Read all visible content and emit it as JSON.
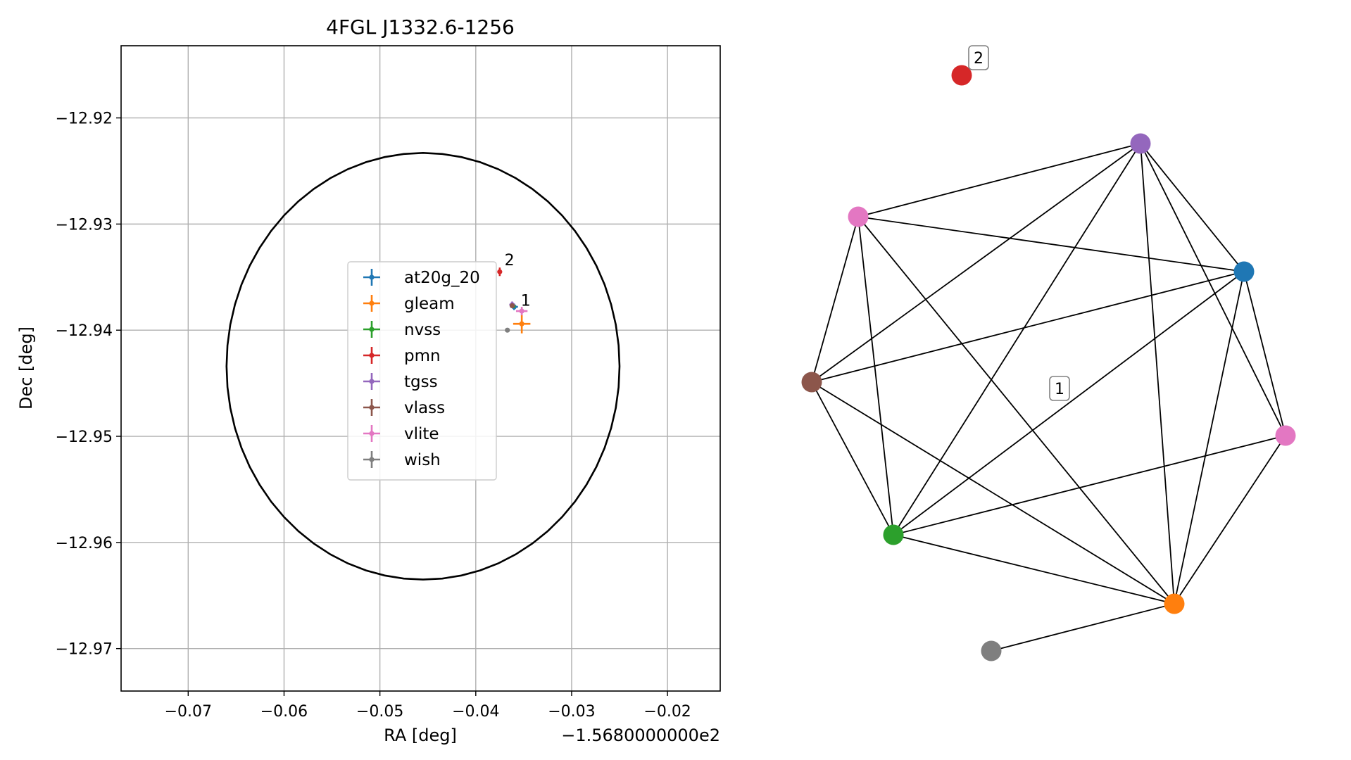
{
  "chart_data": [
    {
      "type": "scatter",
      "title": "4FGL J1332.6-1256",
      "xlabel": "RA [deg]",
      "ylabel": "Dec [deg]",
      "offset_label": "−1.5680000000e2",
      "xlim": [
        -0.077,
        -0.0145
      ],
      "ylim": [
        -12.974,
        -12.9132
      ],
      "xticks": [
        -0.07,
        -0.06,
        -0.05,
        -0.04,
        -0.03,
        -0.02
      ],
      "xtick_labels": [
        "−0.07",
        "−0.06",
        "−0.05",
        "−0.04",
        "−0.03",
        "−0.02"
      ],
      "yticks": [
        -12.92,
        -12.93,
        -12.94,
        -12.95,
        -12.96,
        -12.97
      ],
      "ytick_labels": [
        "−12.92",
        "−12.93",
        "−12.94",
        "−12.95",
        "−12.96",
        "−12.97"
      ],
      "grid": true,
      "legend_position": "center-left",
      "ellipse": {
        "center_x": -0.0455,
        "center_y": -12.9434,
        "radius_x": 0.0205,
        "radius_y": 0.0201,
        "color": "#000000"
      },
      "series": [
        {
          "name": "at20g_20",
          "color": "#1f77b4",
          "x": -0.036,
          "y": -12.9378,
          "xerr": 0.0004,
          "yerr": 0.0003
        },
        {
          "name": "gleam",
          "color": "#ff7f0e",
          "x": -0.0352,
          "y": -12.9394,
          "xerr": 0.0009,
          "yerr": 0.0009
        },
        {
          "name": "nvss",
          "color": "#2ca02c",
          "x": -0.0361,
          "y": -12.9377,
          "xerr": 0.0002,
          "yerr": 0.0002
        },
        {
          "name": "pmn",
          "color": "#d62728",
          "x": -0.0375,
          "y": -12.9345,
          "xerr": 0.0002,
          "yerr": 0.0004
        },
        {
          "name": "tgss",
          "color": "#9467bd",
          "x": -0.0362,
          "y": -12.9376,
          "xerr": 0.0003,
          "yerr": 0.0003
        },
        {
          "name": "vlass",
          "color": "#8c564b",
          "x": -0.0362,
          "y": -12.9377,
          "xerr": 0.0001,
          "yerr": 0.0001
        },
        {
          "name": "vlite",
          "color": "#e377c2",
          "x": -0.0352,
          "y": -12.9382,
          "xerr": 0.0006,
          "yerr": 0.0004
        },
        {
          "name": "wish",
          "color": "#7f7f7f",
          "x": -0.0367,
          "y": -12.94,
          "xerr": 0.0002,
          "yerr": 0.0002
        }
      ],
      "annotations": [
        {
          "text": "2",
          "x": -0.037,
          "y": -12.9339
        },
        {
          "text": "1",
          "x": -0.0353,
          "y": -12.9377
        }
      ]
    },
    {
      "type": "network",
      "nodes": [
        {
          "id": "pmn",
          "color": "#d62728"
        },
        {
          "id": "tgss",
          "color": "#9467bd"
        },
        {
          "id": "vlite_a",
          "color": "#e377c2"
        },
        {
          "id": "at20g_20",
          "color": "#1f77b4"
        },
        {
          "id": "vlass",
          "color": "#8c564b"
        },
        {
          "id": "vlite_b",
          "color": "#e377c2"
        },
        {
          "id": "nvss",
          "color": "#2ca02c"
        },
        {
          "id": "gleam",
          "color": "#ff7f0e"
        },
        {
          "id": "wish",
          "color": "#7f7f7f"
        }
      ],
      "edges": [
        [
          "tgss",
          "vlite_a"
        ],
        [
          "tgss",
          "at20g_20"
        ],
        [
          "tgss",
          "vlass"
        ],
        [
          "tgss",
          "vlite_b"
        ],
        [
          "tgss",
          "nvss"
        ],
        [
          "tgss",
          "gleam"
        ],
        [
          "vlite_a",
          "at20g_20"
        ],
        [
          "vlite_a",
          "vlass"
        ],
        [
          "vlite_a",
          "nvss"
        ],
        [
          "vlite_a",
          "gleam"
        ],
        [
          "at20g_20",
          "vlass"
        ],
        [
          "at20g_20",
          "vlite_b"
        ],
        [
          "at20g_20",
          "nvss"
        ],
        [
          "at20g_20",
          "gleam"
        ],
        [
          "vlass",
          "nvss"
        ],
        [
          "vlass",
          "gleam"
        ],
        [
          "vlite_b",
          "nvss"
        ],
        [
          "vlite_b",
          "gleam"
        ],
        [
          "nvss",
          "gleam"
        ],
        [
          "gleam",
          "wish"
        ]
      ],
      "labels": [
        {
          "text": "2",
          "node": "pmn"
        },
        {
          "text": "1",
          "node": "center"
        }
      ]
    }
  ]
}
